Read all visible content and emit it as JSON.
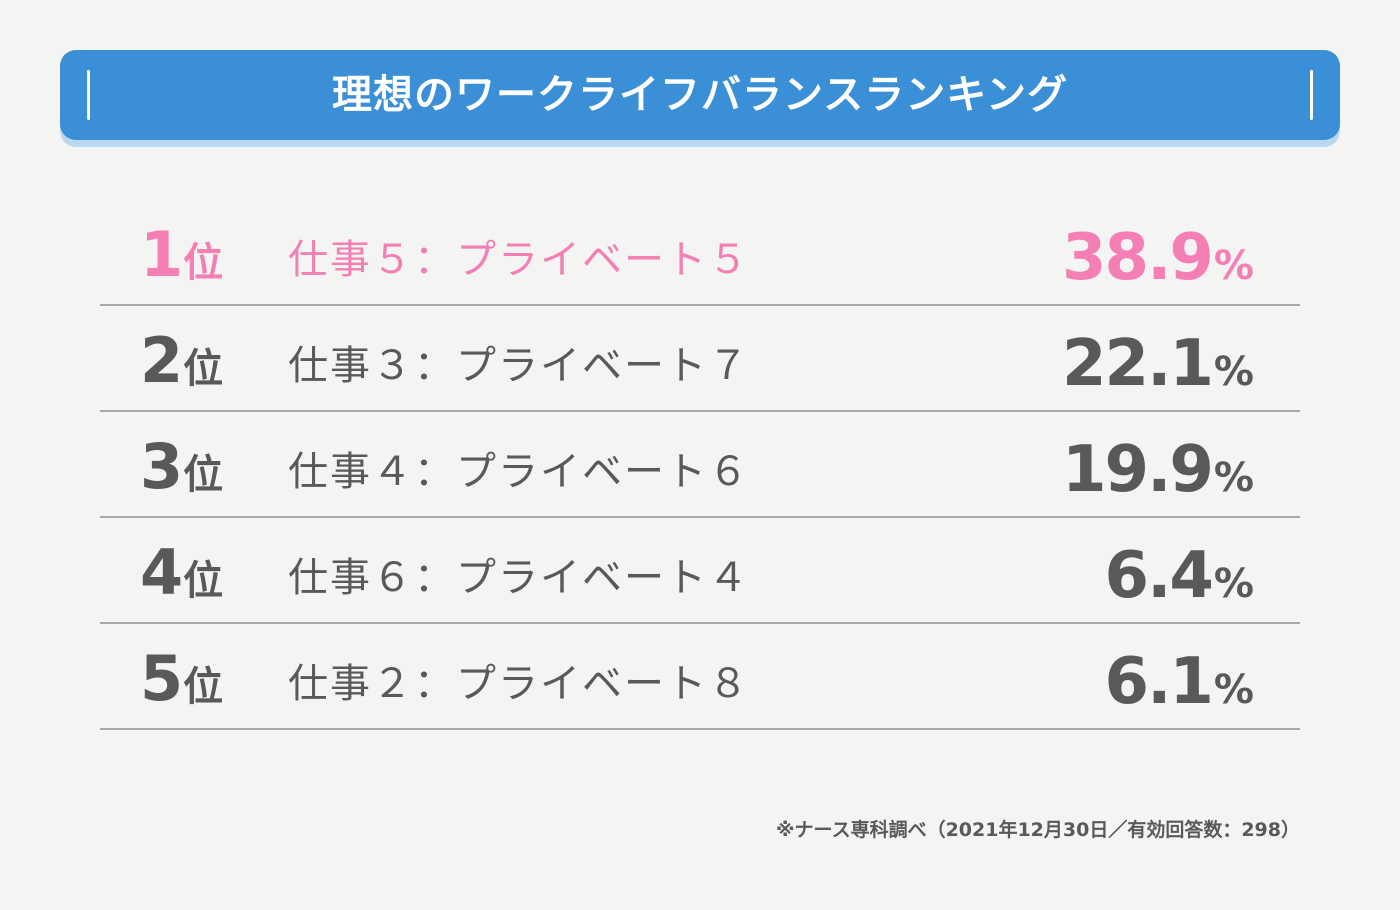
{
  "title": "理想のワークライフバランスランキング",
  "chart_data": {
    "type": "table",
    "title": "理想のワークライフバランスランキング",
    "rank_suffix": "位",
    "percent_unit": "%",
    "rows": [
      {
        "rank": "1",
        "label": "仕事５：プライベート５",
        "value": 38.9,
        "value_text": "38.9"
      },
      {
        "rank": "2",
        "label": "仕事３：プライベート７",
        "value": 22.1,
        "value_text": "22.1"
      },
      {
        "rank": "3",
        "label": "仕事４：プライベート６",
        "value": 19.9,
        "value_text": "19.9"
      },
      {
        "rank": "4",
        "label": "仕事６：プライベート４",
        "value": 6.4,
        "value_text": "6.4"
      },
      {
        "rank": "5",
        "label": "仕事２：プライベート８",
        "value": 6.1,
        "value_text": "6.1"
      }
    ],
    "highlight_color": "#f47fb4",
    "text_color": "#595959",
    "banner_color": "#3b8fd6"
  },
  "footnote": "※ナース専科調べ（2021年12月30日／有効回答数：298）"
}
